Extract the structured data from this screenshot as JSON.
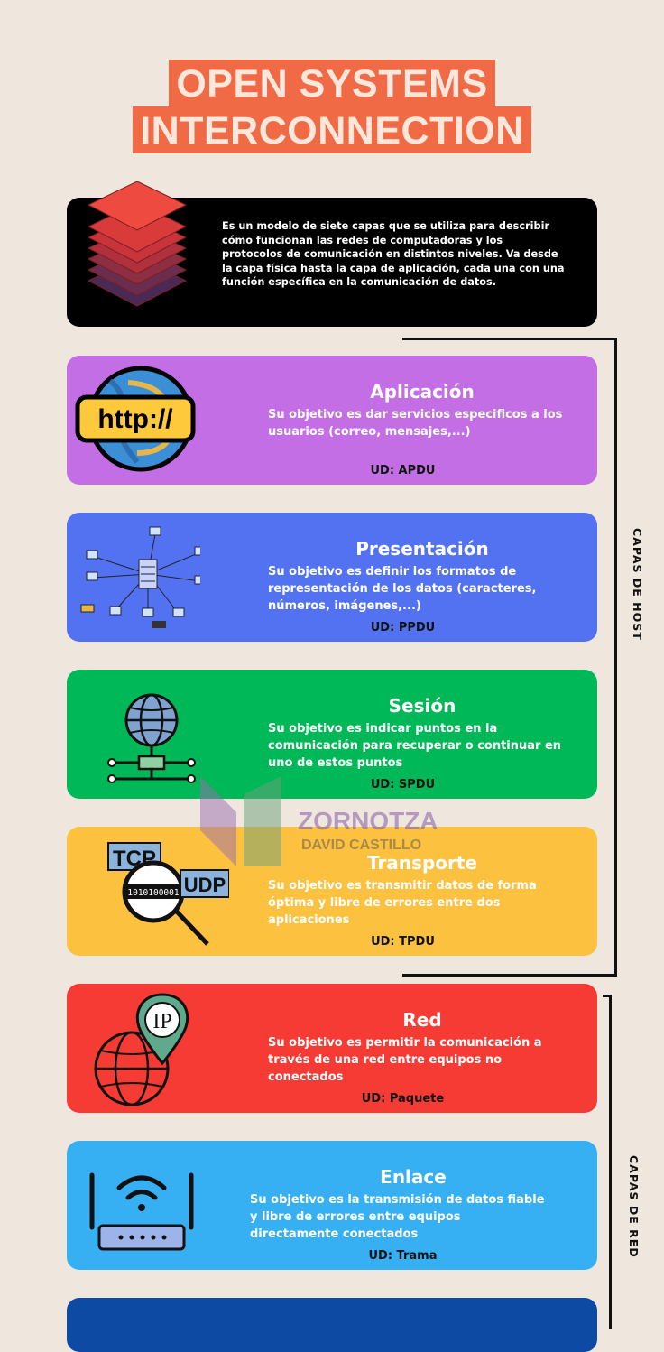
{
  "title": {
    "line1": "OPEN SYSTEMS",
    "line2": "INTERCONNECTION"
  },
  "intro": "Es un modelo de siete capas que se utiliza para describir cómo funcionan las redes de computadoras y los protocolos de comunicación en distintos niveles. Va desde la capa física hasta la capa de aplicación, cada una con una función específica en la comunicación de datos.",
  "layers": [
    {
      "name": "Aplicación",
      "desc": "Su objetivo es dar servicios especificos a los usuarios (correo, mensajes,...)",
      "ud": "UD: APDU",
      "color": "#c46ee6"
    },
    {
      "name": "Presentación",
      "desc": "Su objetivo es definir los formatos de representación de los datos (caracteres, números, imágenes,...)",
      "ud": "UD: PPDU",
      "color": "#5272f2"
    },
    {
      "name": "Sesión",
      "desc": "Su objetivo es indicar puntos en la comunicación para recuperar o continuar en uno de estos puntos",
      "ud": "UD: SPDU",
      "color": "#00b857"
    },
    {
      "name": "Transporte",
      "desc": "Su objetivo es transmitir datos de forma óptima y libre de errores entre dos aplicaciones",
      "ud": "UD: TPDU",
      "color": "#fbc13f"
    },
    {
      "name": "Red",
      "desc": "Su objetivo es permitir la comunicación a través de una red entre equipos no conectados",
      "ud": "UD: Paquete",
      "color": "#f63b35"
    },
    {
      "name": "Enlace",
      "desc": "Su objetivo es la transmisión de datos fiable y libre de errores entre equipos directamente conectados",
      "ud": "UD: Trama",
      "color": "#37b0f3"
    }
  ],
  "last_layer_color": "#0c4aa3",
  "icons": {
    "aplicacion": {
      "name": "http-globe-icon",
      "text": "http://"
    },
    "presentacion": {
      "name": "network-diagram-icon"
    },
    "sesion": {
      "name": "globe-network-icon"
    },
    "transporte": {
      "name": "tcp-udp-magnifier-icon",
      "tcp": "TCP",
      "udp": "UDP",
      "bits": "1010100001"
    },
    "red": {
      "name": "ip-location-globe-icon",
      "text": "IP"
    },
    "enlace": {
      "name": "wifi-router-icon"
    }
  },
  "brackets": {
    "host": "CAPAS DE HOST",
    "red": "CAPAS DE RED"
  },
  "watermark": {
    "line1": "ZORNOTZA",
    "line2": "DAVID CASTILLO"
  }
}
